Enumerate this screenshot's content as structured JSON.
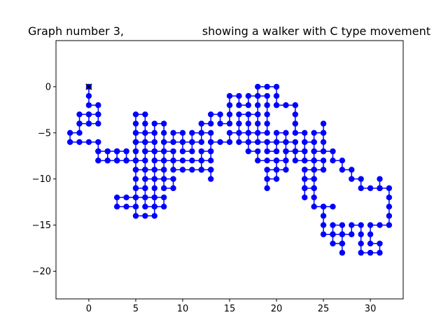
{
  "chart_data": {
    "type": "line",
    "title_left": "Graph number 3,",
    "title_right": "showing a walker with C type movement",
    "xlabel": "",
    "ylabel": "",
    "xlim": [
      -3.5,
      33.5
    ],
    "ylim": [
      -23,
      5
    ],
    "x_ticks": [
      0,
      5,
      10,
      15,
      20,
      25,
      30
    ],
    "y_ticks": [
      0,
      -5,
      -10,
      -15,
      -20
    ],
    "grid": false,
    "legend": "none",
    "colors": {
      "path": "#0000ff",
      "start_marker": "#000000"
    },
    "start": [
      0,
      0
    ],
    "path": [
      [
        0,
        0
      ],
      [
        0,
        -1
      ],
      [
        0,
        -2
      ],
      [
        1,
        -2
      ],
      [
        1,
        -3
      ],
      [
        0,
        -3
      ],
      [
        -1,
        -3
      ],
      [
        -1,
        -4
      ],
      [
        0,
        -4
      ],
      [
        1,
        -4
      ],
      [
        1,
        -3
      ],
      [
        0,
        -3
      ],
      [
        0,
        -4
      ],
      [
        -1,
        -4
      ],
      [
        -1,
        -5
      ],
      [
        -2,
        -5
      ],
      [
        -2,
        -6
      ],
      [
        -1,
        -6
      ],
      [
        0,
        -6
      ],
      [
        1,
        -6
      ],
      [
        1,
        -7
      ],
      [
        1,
        -8
      ],
      [
        2,
        -8
      ],
      [
        2,
        -7
      ],
      [
        3,
        -7
      ],
      [
        3,
        -8
      ],
      [
        4,
        -8
      ],
      [
        4,
        -7
      ],
      [
        4,
        -8
      ],
      [
        5,
        -8
      ],
      [
        5,
        -7
      ],
      [
        5,
        -6
      ],
      [
        5,
        -5
      ],
      [
        5,
        -4
      ],
      [
        5,
        -3
      ],
      [
        6,
        -3
      ],
      [
        6,
        -4
      ],
      [
        6,
        -5
      ],
      [
        6,
        -6
      ],
      [
        7,
        -6
      ],
      [
        7,
        -5
      ],
      [
        7,
        -4
      ],
      [
        8,
        -4
      ],
      [
        8,
        -5
      ],
      [
        8,
        -6
      ],
      [
        9,
        -6
      ],
      [
        9,
        -5
      ],
      [
        10,
        -5
      ],
      [
        10,
        -6
      ],
      [
        10,
        -7
      ],
      [
        11,
        -7
      ],
      [
        11,
        -6
      ],
      [
        11,
        -5
      ],
      [
        12,
        -5
      ],
      [
        12,
        -4
      ],
      [
        13,
        -4
      ],
      [
        13,
        -3
      ],
      [
        14,
        -3
      ],
      [
        14,
        -4
      ],
      [
        15,
        -4
      ],
      [
        15,
        -3
      ],
      [
        15,
        -2
      ],
      [
        15,
        -1
      ],
      [
        16,
        -1
      ],
      [
        16,
        -2
      ],
      [
        17,
        -2
      ],
      [
        17,
        -1
      ],
      [
        18,
        -1
      ],
      [
        18,
        0
      ],
      [
        19,
        0
      ],
      [
        20,
        0
      ],
      [
        20,
        -1
      ],
      [
        20,
        -2
      ],
      [
        21,
        -2
      ],
      [
        22,
        -2
      ],
      [
        22,
        -3
      ],
      [
        22,
        -4
      ],
      [
        22,
        -5
      ],
      [
        23,
        -5
      ],
      [
        23,
        -6
      ],
      [
        24,
        -6
      ],
      [
        24,
        -5
      ],
      [
        25,
        -5
      ],
      [
        25,
        -4
      ],
      [
        25,
        -5
      ],
      [
        25,
        -6
      ],
      [
        25,
        -7
      ],
      [
        26,
        -7
      ],
      [
        26,
        -8
      ],
      [
        27,
        -8
      ],
      [
        27,
        -9
      ],
      [
        28,
        -9
      ],
      [
        28,
        -10
      ],
      [
        29,
        -10
      ],
      [
        29,
        -11
      ],
      [
        30,
        -11
      ],
      [
        31,
        -11
      ],
      [
        31,
        -10
      ],
      [
        31,
        -11
      ],
      [
        32,
        -11
      ],
      [
        32,
        -12
      ],
      [
        32,
        -13
      ],
      [
        32,
        -14
      ],
      [
        32,
        -15
      ],
      [
        31,
        -15
      ],
      [
        30,
        -15
      ],
      [
        30,
        -16
      ],
      [
        30,
        -17
      ],
      [
        31,
        -17
      ],
      [
        31,
        -18
      ],
      [
        30,
        -18
      ],
      [
        29,
        -18
      ],
      [
        29,
        -17
      ],
      [
        29,
        -16
      ],
      [
        29,
        -15
      ],
      [
        28,
        -15
      ],
      [
        28,
        -16
      ],
      [
        27,
        -16
      ],
      [
        27,
        -15
      ],
      [
        26,
        -15
      ],
      [
        26,
        -16
      ],
      [
        26,
        -17
      ],
      [
        27,
        -17
      ],
      [
        27,
        -18
      ],
      [
        27,
        -17
      ],
      [
        27,
        -16
      ],
      [
        26,
        -16
      ],
      [
        25,
        -16
      ],
      [
        25,
        -15
      ],
      [
        25,
        -14
      ],
      [
        25,
        -13
      ],
      [
        26,
        -13
      ],
      [
        25,
        -13
      ],
      [
        24,
        -13
      ],
      [
        24,
        -12
      ],
      [
        24,
        -11
      ],
      [
        24,
        -10
      ],
      [
        24,
        -9
      ],
      [
        23,
        -9
      ],
      [
        23,
        -10
      ],
      [
        23,
        -11
      ],
      [
        23,
        -12
      ],
      [
        23,
        -11
      ],
      [
        24,
        -11
      ],
      [
        24,
        -10
      ],
      [
        23,
        -10
      ],
      [
        23,
        -9
      ],
      [
        24,
        -9
      ],
      [
        24,
        -8
      ],
      [
        23,
        -8
      ],
      [
        22,
        -8
      ],
      [
        22,
        -7
      ],
      [
        21,
        -7
      ],
      [
        21,
        -8
      ],
      [
        20,
        -8
      ],
      [
        20,
        -9
      ],
      [
        19,
        -9
      ],
      [
        19,
        -10
      ],
      [
        19,
        -11
      ],
      [
        19,
        -10
      ],
      [
        20,
        -10
      ],
      [
        20,
        -9
      ],
      [
        21,
        -9
      ],
      [
        21,
        -8
      ],
      [
        20,
        -8
      ],
      [
        19,
        -8
      ],
      [
        18,
        -8
      ],
      [
        18,
        -7
      ],
      [
        17,
        -7
      ],
      [
        17,
        -6
      ],
      [
        16,
        -6
      ],
      [
        16,
        -5
      ],
      [
        16,
        -4
      ],
      [
        16,
        -3
      ],
      [
        17,
        -3
      ],
      [
        18,
        -3
      ],
      [
        18,
        -4
      ],
      [
        18,
        -5
      ],
      [
        19,
        -5
      ],
      [
        19,
        -4
      ],
      [
        19,
        -3
      ],
      [
        19,
        -2
      ],
      [
        19,
        -1
      ],
      [
        18,
        -1
      ],
      [
        18,
        -2
      ],
      [
        18,
        -3
      ],
      [
        17,
        -3
      ],
      [
        17,
        -4
      ],
      [
        17,
        -5
      ],
      [
        18,
        -5
      ],
      [
        18,
        -6
      ],
      [
        19,
        -6
      ],
      [
        19,
        -7
      ],
      [
        20,
        -7
      ],
      [
        20,
        -6
      ],
      [
        20,
        -5
      ],
      [
        21,
        -5
      ],
      [
        21,
        -6
      ],
      [
        21,
        -7
      ],
      [
        22,
        -7
      ],
      [
        23,
        -7
      ],
      [
        23,
        -6
      ],
      [
        24,
        -6
      ],
      [
        24,
        -7
      ],
      [
        25,
        -7
      ],
      [
        24,
        -7
      ],
      [
        24,
        -8
      ],
      [
        25,
        -8
      ],
      [
        25,
        -9
      ],
      [
        24,
        -9
      ],
      [
        24,
        -8
      ],
      [
        23,
        -8
      ],
      [
        23,
        -7
      ],
      [
        22,
        -7
      ],
      [
        22,
        -6
      ],
      [
        21,
        -6
      ],
      [
        20,
        -6
      ],
      [
        19,
        -6
      ],
      [
        18,
        -6
      ],
      [
        17,
        -6
      ],
      [
        17,
        -5
      ],
      [
        16,
        -5
      ],
      [
        15,
        -5
      ],
      [
        15,
        -6
      ],
      [
        14,
        -6
      ],
      [
        13,
        -6
      ],
      [
        13,
        -7
      ],
      [
        12,
        -7
      ],
      [
        12,
        -8
      ],
      [
        12,
        -9
      ],
      [
        13,
        -9
      ],
      [
        13,
        -10
      ],
      [
        13,
        -9
      ],
      [
        12,
        -9
      ],
      [
        11,
        -9
      ],
      [
        10,
        -9
      ],
      [
        9,
        -9
      ],
      [
        9,
        -8
      ],
      [
        10,
        -8
      ],
      [
        11,
        -8
      ],
      [
        12,
        -8
      ],
      [
        13,
        -8
      ],
      [
        13,
        -7
      ],
      [
        13,
        -6
      ],
      [
        13,
        -5
      ],
      [
        12,
        -5
      ],
      [
        12,
        -6
      ],
      [
        11,
        -6
      ],
      [
        10,
        -6
      ],
      [
        9,
        -6
      ],
      [
        8,
        -6
      ],
      [
        8,
        -7
      ],
      [
        9,
        -7
      ],
      [
        9,
        -8
      ],
      [
        8,
        -8
      ],
      [
        7,
        -8
      ],
      [
        7,
        -9
      ],
      [
        6,
        -9
      ],
      [
        6,
        -8
      ],
      [
        6,
        -7
      ],
      [
        7,
        -7
      ],
      [
        8,
        -7
      ],
      [
        8,
        -8
      ],
      [
        8,
        -9
      ],
      [
        8,
        -10
      ],
      [
        9,
        -10
      ],
      [
        9,
        -11
      ],
      [
        8,
        -11
      ],
      [
        8,
        -10
      ],
      [
        7,
        -10
      ],
      [
        7,
        -11
      ],
      [
        7,
        -12
      ],
      [
        8,
        -12
      ],
      [
        8,
        -13
      ],
      [
        7,
        -13
      ],
      [
        7,
        -14
      ],
      [
        6,
        -14
      ],
      [
        5,
        -14
      ],
      [
        5,
        -13
      ],
      [
        5,
        -12
      ],
      [
        6,
        -12
      ],
      [
        6,
        -13
      ],
      [
        7,
        -13
      ],
      [
        7,
        -12
      ],
      [
        6,
        -12
      ],
      [
        6,
        -11
      ],
      [
        5,
        -11
      ],
      [
        5,
        -10
      ],
      [
        5,
        -9
      ],
      [
        5,
        -8
      ],
      [
        6,
        -8
      ],
      [
        6,
        -9
      ],
      [
        6,
        -10
      ],
      [
        7,
        -10
      ],
      [
        7,
        -9
      ],
      [
        8,
        -9
      ],
      [
        8,
        -8
      ],
      [
        7,
        -8
      ],
      [
        7,
        -7
      ],
      [
        6,
        -7
      ],
      [
        6,
        -6
      ],
      [
        5,
        -6
      ],
      [
        5,
        -5
      ],
      [
        6,
        -5
      ],
      [
        7,
        -5
      ],
      [
        7,
        -6
      ],
      [
        7,
        -7
      ],
      [
        6,
        -7
      ],
      [
        6,
        -6
      ],
      [
        5,
        -6
      ],
      [
        5,
        -7
      ],
      [
        5,
        -8
      ],
      [
        4,
        -8
      ],
      [
        4,
        -7
      ],
      [
        3,
        -7
      ],
      [
        3,
        -8
      ],
      [
        2,
        -8
      ],
      [
        1,
        -8
      ],
      [
        1,
        -7
      ],
      [
        2,
        -7
      ],
      [
        3,
        -7
      ],
      [
        3,
        -8
      ],
      [
        4,
        -8
      ],
      [
        5,
        -8
      ],
      [
        5,
        -9
      ],
      [
        6,
        -9
      ],
      [
        6,
        -10
      ],
      [
        6,
        -11
      ],
      [
        5,
        -11
      ],
      [
        5,
        -12
      ],
      [
        4,
        -12
      ],
      [
        3,
        -12
      ],
      [
        3,
        -13
      ],
      [
        4,
        -13
      ],
      [
        5,
        -13
      ],
      [
        5,
        -12
      ]
    ]
  }
}
